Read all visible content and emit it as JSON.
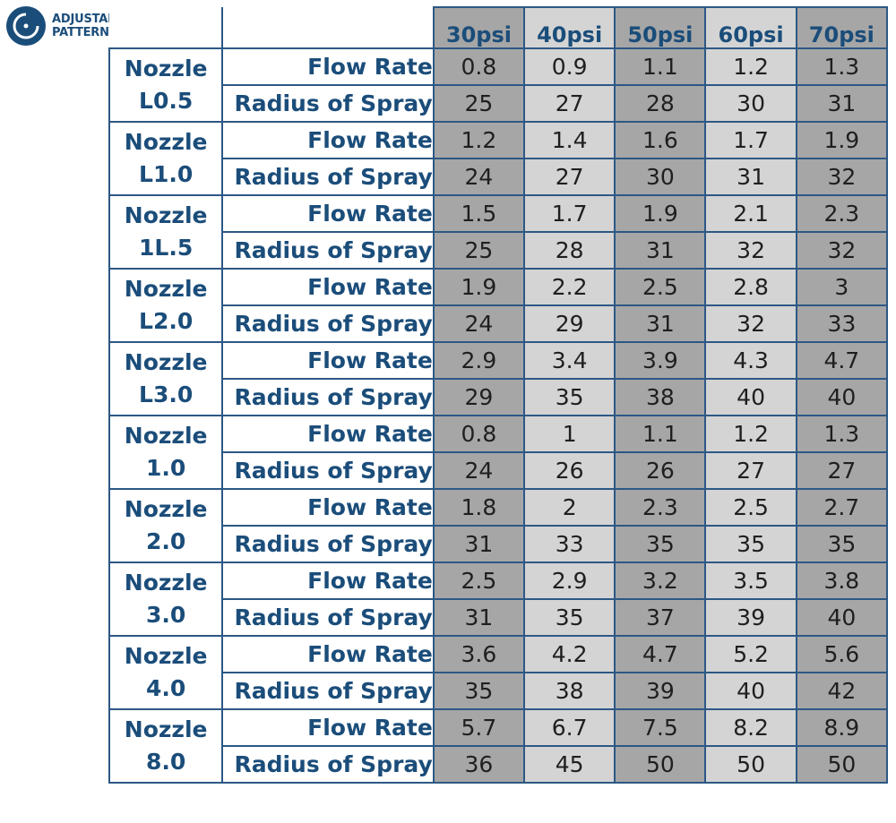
{
  "badge": {
    "line1": "ADJUSTABLE",
    "line2": "PATTERN",
    "icon": "adjustable-dial-icon",
    "color": "#1b4d7a"
  },
  "columns": [
    "30psi",
    "40psi",
    "50psi",
    "60psi",
    "70psi"
  ],
  "colors": {
    "header_text": "#1b4d7a",
    "dark_column": "#a6a6a6",
    "light_column": "#d4d4d4",
    "border": "#2c5885"
  },
  "rows": [
    {
      "line1": "Nozzle",
      "line2": "L0.5",
      "flow_label": "Flow Rate",
      "flow": [
        "0.8",
        "0.9",
        "1.1",
        "1.2",
        "1.3"
      ],
      "radius_label": "Radius of Spray",
      "radius": [
        "25",
        "27",
        "28",
        "30",
        "31"
      ]
    },
    {
      "line1": "Nozzle",
      "line2": "L1.0",
      "flow_label": "Flow Rate",
      "flow": [
        "1.2",
        "1.4",
        "1.6",
        "1.7",
        "1.9"
      ],
      "radius_label": "Radius of Spray",
      "radius": [
        "24",
        "27",
        "30",
        "31",
        "32"
      ]
    },
    {
      "line1": "Nozzle",
      "line2": "1L.5",
      "flow_label": "Flow Rate",
      "flow": [
        "1.5",
        "1.7",
        "1.9",
        "2.1",
        "2.3"
      ],
      "radius_label": "Radius of Spray",
      "radius": [
        "25",
        "28",
        "31",
        "32",
        "32"
      ]
    },
    {
      "line1": "Nozzle",
      "line2": "L2.0",
      "flow_label": "Flow Rate",
      "flow": [
        "1.9",
        "2.2",
        "2.5",
        "2.8",
        "3"
      ],
      "radius_label": "Radius of Spray",
      "radius": [
        "24",
        "29",
        "31",
        "32",
        "33"
      ]
    },
    {
      "line1": "Nozzle",
      "line2": "L3.0",
      "flow_label": "Flow Rate",
      "flow": [
        "2.9",
        "3.4",
        "3.9",
        "4.3",
        "4.7"
      ],
      "radius_label": "Radius of Spray",
      "radius": [
        "29",
        "35",
        "38",
        "40",
        "40"
      ]
    },
    {
      "line1": "Nozzle",
      "line2": "1.0",
      "flow_label": "Flow Rate",
      "flow": [
        "0.8",
        "1",
        "1.1",
        "1.2",
        "1.3"
      ],
      "radius_label": "Radius of Spray",
      "radius": [
        "24",
        "26",
        "26",
        "27",
        "27"
      ]
    },
    {
      "line1": "Nozzle",
      "line2": "2.0",
      "flow_label": "Flow Rate",
      "flow": [
        "1.8",
        "2",
        "2.3",
        "2.5",
        "2.7"
      ],
      "radius_label": "Radius of Spray",
      "radius": [
        "31",
        "33",
        "35",
        "35",
        "35"
      ]
    },
    {
      "line1": "Nozzle",
      "line2": "3.0",
      "flow_label": "Flow Rate",
      "flow": [
        "2.5",
        "2.9",
        "3.2",
        "3.5",
        "3.8"
      ],
      "radius_label": "Radius of Spray",
      "radius": [
        "31",
        "35",
        "37",
        "39",
        "40"
      ]
    },
    {
      "line1": "Nozzle",
      "line2": "4.0",
      "flow_label": "Flow Rate",
      "flow": [
        "3.6",
        "4.2",
        "4.7",
        "5.2",
        "5.6"
      ],
      "radius_label": "Radius of Spray",
      "radius": [
        "35",
        "38",
        "39",
        "40",
        "42"
      ]
    },
    {
      "line1": "Nozzle",
      "line2": "8.0",
      "flow_label": "Flow Rate",
      "flow": [
        "5.7",
        "6.7",
        "7.5",
        "8.2",
        "8.9"
      ],
      "radius_label": "Radius of Spray",
      "radius": [
        "36",
        "45",
        "50",
        "50",
        "50"
      ]
    }
  ]
}
